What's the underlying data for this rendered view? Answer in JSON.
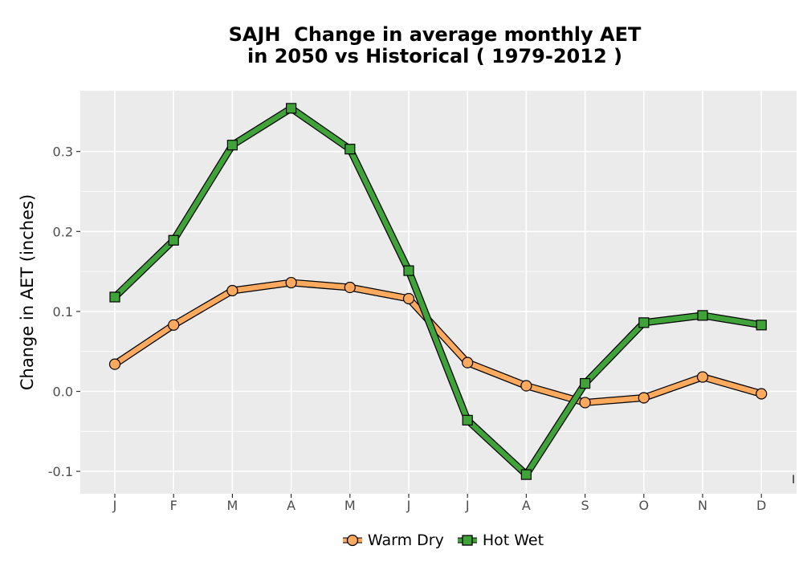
{
  "chart_data": {
    "type": "line",
    "title_lines": [
      "SAJH  Change in average monthly AET",
      "in 2050 vs Historical ( 1979-2012 )"
    ],
    "ylabel": "Change in AET (inches)",
    "xlabel": "",
    "categories": [
      "J",
      "F",
      "M",
      "A",
      "M",
      "J",
      "J",
      "A",
      "S",
      "O",
      "N",
      "D"
    ],
    "ylim": [
      -0.128,
      0.376
    ],
    "yticks": [
      -0.1,
      0.0,
      0.1,
      0.2,
      0.3
    ],
    "ytick_labels": [
      "-0.1",
      "0.0",
      "0.1",
      "0.2",
      "0.3"
    ],
    "grid": true,
    "legend_position": "bottom",
    "series": [
      {
        "name": "Warm Dry",
        "marker": "circle",
        "color": "#FDAA5F",
        "values": [
          0.034,
          0.083,
          0.126,
          0.136,
          0.13,
          0.116,
          0.036,
          0.007,
          -0.014,
          -0.008,
          0.018,
          -0.003
        ]
      },
      {
        "name": "Hot Wet",
        "marker": "square",
        "color": "#3FA33A",
        "values": [
          0.118,
          0.189,
          0.308,
          0.354,
          0.303,
          0.151,
          -0.036,
          -0.104,
          0.01,
          0.086,
          0.095,
          0.083
        ]
      }
    ],
    "panel_background": "#EBEBEB",
    "corner_mark": "I"
  }
}
